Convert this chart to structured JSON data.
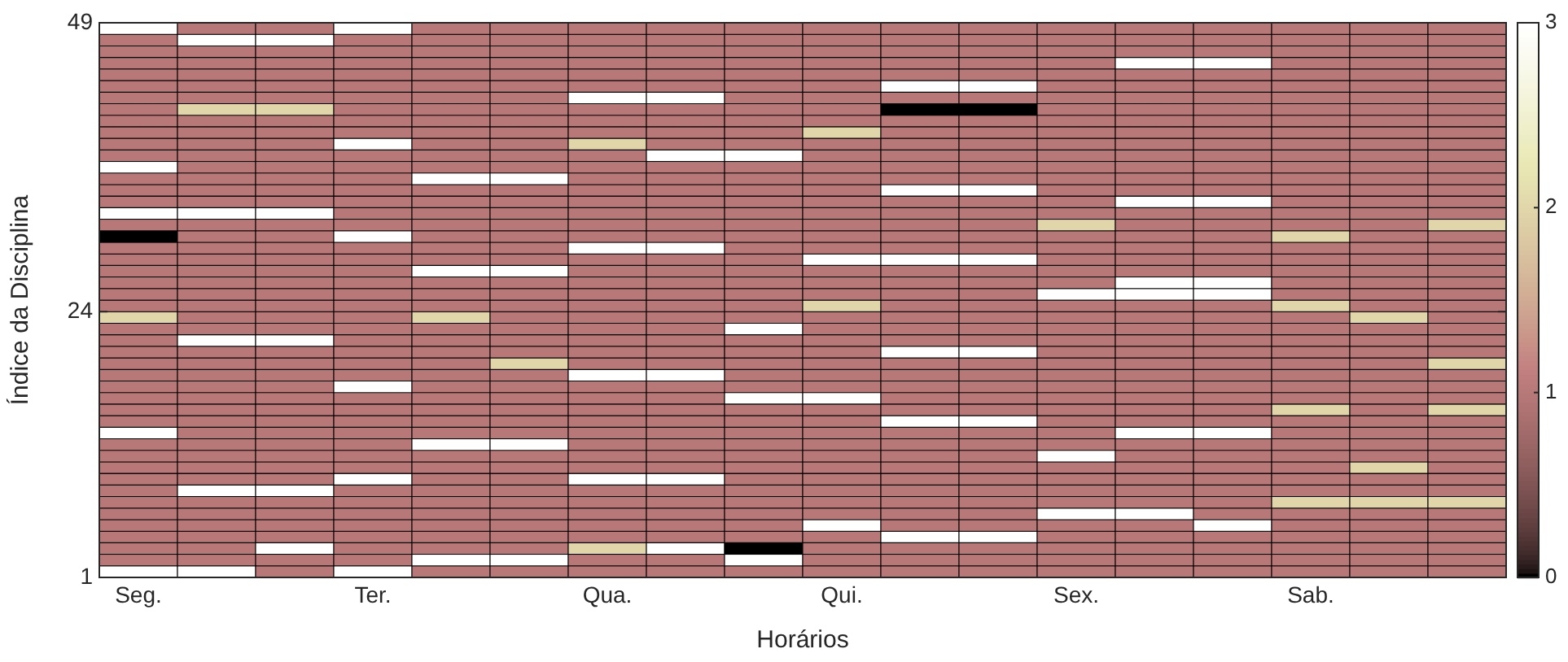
{
  "chart_data": {
    "type": "heatmap",
    "xlabel": "Horários",
    "ylabel": "Índice da Disciplina",
    "categories": [
      "Seg.",
      null,
      null,
      "Ter.",
      null,
      null,
      "Qua.",
      null,
      null,
      "Qui.",
      null,
      null,
      "Sex.",
      null,
      null,
      "Sab.",
      null,
      null
    ],
    "ylim": [
      1,
      49
    ],
    "yticks": [
      1,
      24,
      49
    ],
    "clim": [
      0,
      3
    ],
    "cticks": [
      0,
      1,
      2,
      3
    ],
    "cells": [
      [
        3,
        1,
        1,
        3,
        1,
        1,
        1,
        1,
        1,
        1,
        1,
        1,
        1,
        1,
        1,
        1,
        1,
        1
      ],
      [
        1,
        3,
        3,
        1,
        1,
        1,
        1,
        1,
        1,
        1,
        1,
        1,
        1,
        1,
        1,
        1,
        1,
        1
      ],
      [
        1,
        1,
        1,
        1,
        1,
        1,
        1,
        1,
        1,
        1,
        1,
        1,
        1,
        1,
        1,
        1,
        1,
        1
      ],
      [
        1,
        1,
        1,
        1,
        1,
        1,
        1,
        1,
        1,
        1,
        1,
        1,
        1,
        3,
        3,
        1,
        1,
        1
      ],
      [
        1,
        1,
        1,
        1,
        1,
        1,
        1,
        1,
        1,
        1,
        1,
        1,
        1,
        1,
        1,
        1,
        1,
        1
      ],
      [
        1,
        1,
        1,
        1,
        1,
        1,
        1,
        1,
        1,
        1,
        3,
        3,
        1,
        1,
        1,
        1,
        1,
        1
      ],
      [
        1,
        1,
        1,
        1,
        1,
        1,
        3,
        3,
        1,
        1,
        1,
        1,
        1,
        1,
        1,
        1,
        1,
        1
      ],
      [
        1,
        2,
        2,
        1,
        1,
        1,
        1,
        1,
        1,
        1,
        0,
        0,
        1,
        1,
        1,
        1,
        1,
        1
      ],
      [
        1,
        1,
        1,
        1,
        1,
        1,
        1,
        1,
        1,
        1,
        1,
        1,
        1,
        1,
        1,
        1,
        1,
        1
      ],
      [
        1,
        1,
        1,
        1,
        1,
        1,
        1,
        1,
        1,
        2,
        1,
        1,
        1,
        1,
        1,
        1,
        1,
        1
      ],
      [
        1,
        1,
        1,
        3,
        1,
        1,
        2,
        1,
        1,
        1,
        1,
        1,
        1,
        1,
        1,
        1,
        1,
        1
      ],
      [
        1,
        1,
        1,
        1,
        1,
        1,
        1,
        3,
        3,
        1,
        1,
        1,
        1,
        1,
        1,
        1,
        1,
        1
      ],
      [
        3,
        1,
        1,
        1,
        1,
        1,
        1,
        1,
        1,
        1,
        1,
        1,
        1,
        1,
        1,
        1,
        1,
        1
      ],
      [
        1,
        1,
        1,
        1,
        3,
        3,
        1,
        1,
        1,
        1,
        1,
        1,
        1,
        1,
        1,
        1,
        1,
        1
      ],
      [
        1,
        1,
        1,
        1,
        1,
        1,
        1,
        1,
        1,
        1,
        3,
        3,
        1,
        1,
        1,
        1,
        1,
        1
      ],
      [
        1,
        1,
        1,
        1,
        1,
        1,
        1,
        1,
        1,
        1,
        1,
        1,
        1,
        3,
        3,
        1,
        1,
        1
      ],
      [
        3,
        3,
        3,
        1,
        1,
        1,
        1,
        1,
        1,
        1,
        1,
        1,
        1,
        1,
        1,
        1,
        1,
        1
      ],
      [
        1,
        1,
        1,
        1,
        1,
        1,
        1,
        1,
        1,
        1,
        1,
        1,
        2,
        1,
        1,
        1,
        1,
        2
      ],
      [
        0,
        1,
        1,
        3,
        1,
        1,
        1,
        1,
        1,
        1,
        1,
        1,
        1,
        1,
        1,
        2,
        1,
        1
      ],
      [
        1,
        1,
        1,
        1,
        1,
        1,
        3,
        3,
        1,
        1,
        1,
        1,
        1,
        1,
        1,
        1,
        1,
        1
      ],
      [
        1,
        1,
        1,
        1,
        1,
        1,
        1,
        1,
        1,
        3,
        3,
        3,
        1,
        1,
        1,
        1,
        1,
        1
      ],
      [
        1,
        1,
        1,
        1,
        3,
        3,
        1,
        1,
        1,
        1,
        1,
        1,
        1,
        1,
        1,
        1,
        1,
        1
      ],
      [
        1,
        1,
        1,
        1,
        1,
        1,
        1,
        1,
        1,
        1,
        1,
        1,
        1,
        3,
        3,
        1,
        1,
        1
      ],
      [
        1,
        1,
        1,
        1,
        1,
        1,
        1,
        1,
        1,
        1,
        1,
        1,
        3,
        3,
        3,
        1,
        1,
        1
      ],
      [
        1,
        1,
        1,
        1,
        1,
        1,
        1,
        1,
        1,
        2,
        1,
        1,
        1,
        1,
        1,
        2,
        1,
        1
      ],
      [
        2,
        1,
        1,
        1,
        2,
        1,
        1,
        1,
        1,
        1,
        1,
        1,
        1,
        1,
        1,
        1,
        2,
        1
      ],
      [
        1,
        1,
        1,
        1,
        1,
        1,
        1,
        1,
        3,
        1,
        1,
        1,
        1,
        1,
        1,
        1,
        1,
        1
      ],
      [
        1,
        3,
        3,
        1,
        1,
        1,
        1,
        1,
        1,
        1,
        1,
        1,
        1,
        1,
        1,
        1,
        1,
        1
      ],
      [
        1,
        1,
        1,
        1,
        1,
        1,
        1,
        1,
        1,
        1,
        3,
        3,
        1,
        1,
        1,
        1,
        1,
        1
      ],
      [
        1,
        1,
        1,
        1,
        1,
        2,
        1,
        1,
        1,
        1,
        1,
        1,
        1,
        1,
        1,
        1,
        1,
        2
      ],
      [
        1,
        1,
        1,
        1,
        1,
        1,
        3,
        3,
        1,
        1,
        1,
        1,
        1,
        1,
        1,
        1,
        1,
        1
      ],
      [
        1,
        1,
        1,
        3,
        1,
        1,
        1,
        1,
        1,
        1,
        1,
        1,
        1,
        1,
        1,
        1,
        1,
        1
      ],
      [
        1,
        1,
        1,
        1,
        1,
        1,
        1,
        1,
        3,
        3,
        1,
        1,
        1,
        1,
        1,
        1,
        1,
        1
      ],
      [
        1,
        1,
        1,
        1,
        1,
        1,
        1,
        1,
        1,
        1,
        1,
        1,
        1,
        1,
        1,
        2,
        1,
        2
      ],
      [
        1,
        1,
        1,
        1,
        1,
        1,
        1,
        1,
        1,
        1,
        3,
        3,
        1,
        1,
        1,
        1,
        1,
        1
      ],
      [
        3,
        1,
        1,
        1,
        1,
        1,
        1,
        1,
        1,
        1,
        1,
        1,
        1,
        3,
        3,
        1,
        1,
        1
      ],
      [
        1,
        1,
        1,
        1,
        3,
        3,
        1,
        1,
        1,
        1,
        1,
        1,
        1,
        1,
        1,
        1,
        1,
        1
      ],
      [
        1,
        1,
        1,
        1,
        1,
        1,
        1,
        1,
        1,
        1,
        1,
        1,
        3,
        1,
        1,
        1,
        1,
        1
      ],
      [
        1,
        1,
        1,
        1,
        1,
        1,
        1,
        1,
        1,
        1,
        1,
        1,
        1,
        1,
        1,
        1,
        2,
        1
      ],
      [
        1,
        1,
        1,
        3,
        1,
        1,
        3,
        3,
        1,
        1,
        1,
        1,
        1,
        1,
        1,
        1,
        1,
        1
      ],
      [
        1,
        3,
        3,
        1,
        1,
        1,
        1,
        1,
        1,
        1,
        1,
        1,
        1,
        1,
        1,
        1,
        1,
        1
      ],
      [
        1,
        1,
        1,
        1,
        1,
        1,
        1,
        1,
        1,
        1,
        1,
        1,
        1,
        1,
        1,
        2,
        2,
        2
      ],
      [
        1,
        1,
        1,
        1,
        1,
        1,
        1,
        1,
        1,
        1,
        1,
        1,
        3,
        3,
        1,
        1,
        1,
        1
      ],
      [
        1,
        1,
        1,
        1,
        1,
        1,
        1,
        1,
        1,
        3,
        1,
        1,
        1,
        1,
        3,
        1,
        1,
        1
      ],
      [
        1,
        1,
        1,
        1,
        1,
        1,
        1,
        1,
        1,
        1,
        3,
        3,
        1,
        1,
        1,
        1,
        1,
        1
      ],
      [
        1,
        1,
        3,
        1,
        1,
        1,
        2,
        3,
        0,
        1,
        1,
        1,
        1,
        1,
        1,
        1,
        1,
        1
      ],
      [
        1,
        1,
        1,
        1,
        3,
        3,
        1,
        1,
        3,
        1,
        1,
        1,
        1,
        1,
        1,
        1,
        1,
        1
      ],
      [
        3,
        3,
        1,
        3,
        1,
        1,
        1,
        1,
        1,
        1,
        1,
        1,
        1,
        1,
        1,
        1,
        1,
        1
      ]
    ]
  }
}
